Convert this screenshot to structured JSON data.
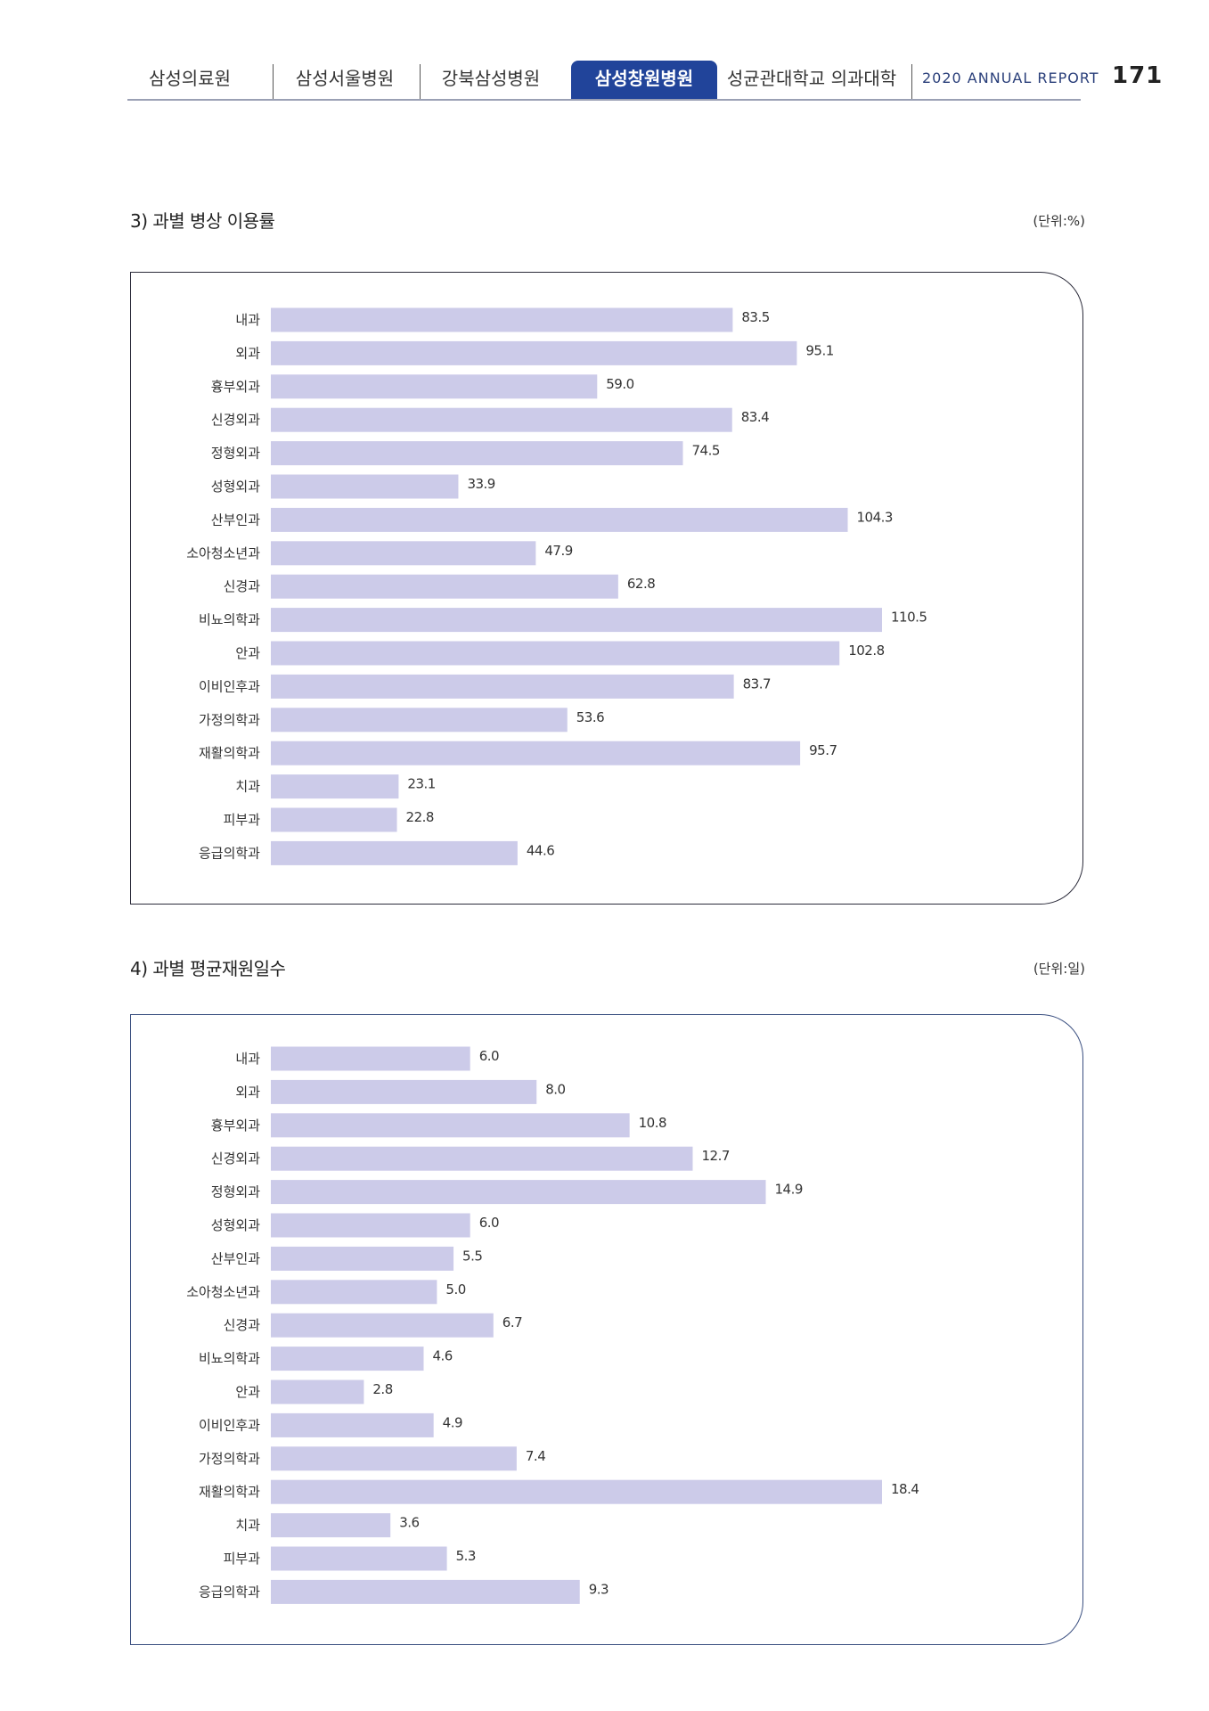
{
  "header": {
    "tabs": [
      {
        "label": "삼성의료원",
        "active": false
      },
      {
        "label": "삼성서울병원",
        "active": false
      },
      {
        "label": "강북삼성병원",
        "active": false
      },
      {
        "label": "삼성창원병원",
        "active": true
      },
      {
        "label": "성균관대학교 의과대학",
        "active": false
      }
    ],
    "report_label": "2020 ANNUAL REPORT",
    "page_number": "171",
    "active_color": "#21449a"
  },
  "sections": [
    {
      "title": "3) 과별 병상 이용률",
      "unit": "(단위:%)"
    },
    {
      "title": "4) 과별 평균재원일수",
      "unit": "(단위:일)"
    }
  ],
  "bar_color": "#cccbe9",
  "chart_data": [
    {
      "type": "bar",
      "orientation": "horizontal",
      "categories": [
        "내과",
        "외과",
        "흉부외과",
        "신경외과",
        "정형외과",
        "성형외과",
        "산부인과",
        "소아청소년과",
        "신경과",
        "비뇨의학과",
        "안과",
        "이비인후과",
        "가정의학과",
        "재활의학과",
        "치과",
        "피부과",
        "응급의학과"
      ],
      "values": [
        83.5,
        95.1,
        59.0,
        83.4,
        74.5,
        33.9,
        104.3,
        47.9,
        62.8,
        110.5,
        102.8,
        83.7,
        53.6,
        95.7,
        23.1,
        22.8,
        44.6
      ],
      "labels": [
        "83.5",
        "95.1",
        "59.0",
        "83.4",
        "74.5",
        "33.9",
        "104.3",
        "47.9",
        "62.8",
        "110.5",
        "102.8",
        "83.7",
        "53.6",
        "95.7",
        "23.1",
        "22.8",
        "44.6"
      ],
      "xlim": [
        0,
        110.5
      ]
    },
    {
      "type": "bar",
      "orientation": "horizontal",
      "categories": [
        "내과",
        "외과",
        "흉부외과",
        "신경외과",
        "정형외과",
        "성형외과",
        "산부인과",
        "소아청소년과",
        "신경과",
        "비뇨의학과",
        "안과",
        "이비인후과",
        "가정의학과",
        "재활의학과",
        "치과",
        "피부과",
        "응급의학과"
      ],
      "values": [
        6.0,
        8.0,
        10.8,
        12.7,
        14.9,
        6.0,
        5.5,
        5.0,
        6.7,
        4.6,
        2.8,
        4.9,
        7.4,
        18.4,
        3.6,
        5.3,
        9.3
      ],
      "labels": [
        "6.0",
        "8.0",
        "10.8",
        "12.7",
        "14.9",
        "6.0",
        "5.5",
        "5.0",
        "6.7",
        "4.6",
        "2.8",
        "4.9",
        "7.4",
        "18.4",
        "3.6",
        "5.3",
        "9.3"
      ],
      "xlim": [
        0,
        18.4
      ]
    }
  ]
}
